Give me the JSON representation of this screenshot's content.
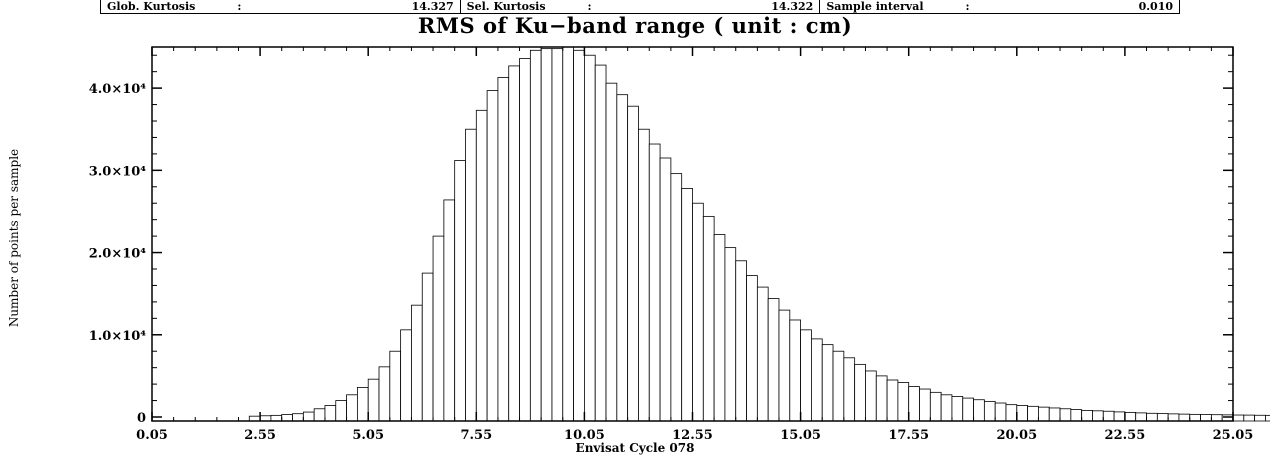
{
  "stats": [
    {
      "label": "Glob. Kurtosis",
      "colon": ":",
      "value": "14.327"
    },
    {
      "label": "Sel. Kurtosis",
      "colon": ":",
      "value": "14.322"
    },
    {
      "label": "Sample interval",
      "colon": ":",
      "value": "0.010"
    }
  ],
  "chart_data": {
    "type": "bar",
    "title": "RMS of Ku−band range  ( unit : cm)",
    "xlabel": "Envisat Cycle 078",
    "ylabel": "Number of points per sample",
    "xlim": [
      0.05,
      25.05
    ],
    "ylim": [
      0,
      45000
    ],
    "grid": false,
    "bin_width": 0.25,
    "bin_start": 2.3,
    "x_ticks": [
      "0.05",
      "2.55",
      "5.05",
      "7.55",
      "10.05",
      "12.55",
      "15.05",
      "17.55",
      "20.05",
      "22.55",
      "25.05"
    ],
    "y_ticks": [
      {
        "value": 0,
        "label": "0"
      },
      {
        "value": 10000,
        "label": "1.0×10⁴"
      },
      {
        "value": 20000,
        "label": "2.0×10⁴"
      },
      {
        "value": 30000,
        "label": "3.0×10⁴"
      },
      {
        "value": 40000,
        "label": "4.0×10⁴"
      }
    ],
    "values": [
      100,
      150,
      200,
      300,
      400,
      600,
      1000,
      1400,
      2000,
      2700,
      3600,
      4600,
      6100,
      8000,
      10600,
      13600,
      17500,
      22000,
      26400,
      31200,
      35000,
      37300,
      39700,
      41300,
      42700,
      43600,
      44600,
      44800,
      44800,
      45000,
      44600,
      44000,
      42800,
      40600,
      39200,
      37800,
      35000,
      33200,
      31500,
      29600,
      27800,
      26000,
      24400,
      22200,
      20600,
      19000,
      17200,
      15800,
      14400,
      13000,
      11800,
      10600,
      9500,
      8800,
      8000,
      7200,
      6400,
      5600,
      5000,
      4500,
      4200,
      3700,
      3400,
      3000,
      2700,
      2500,
      2300,
      2100,
      1900,
      1700,
      1500,
      1400,
      1300,
      1200,
      1100,
      1000,
      900,
      800,
      750,
      700,
      620,
      560,
      500,
      450,
      420,
      380,
      350,
      320,
      300,
      280,
      260,
      240,
      230,
      210,
      200,
      190
    ]
  }
}
